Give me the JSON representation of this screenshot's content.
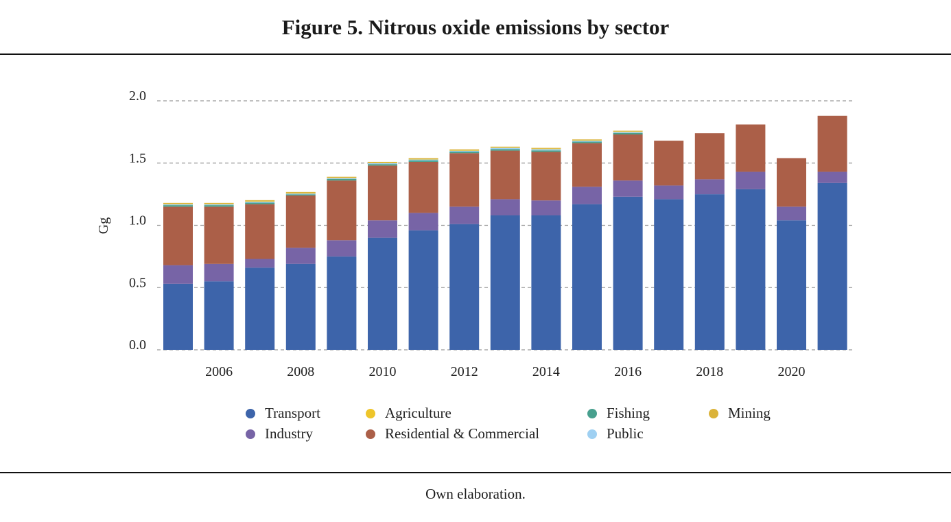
{
  "title": "Figure 5. Nitrous oxide emissions by sector",
  "footer": "Own elaboration.",
  "chart_data": {
    "type": "bar",
    "stacked": true,
    "title": "Figure 5. Nitrous oxide emissions by sector",
    "xlabel": "",
    "ylabel": "Gg",
    "ylim": [
      0,
      2.0
    ],
    "yticks": [
      "0.0",
      "0.5",
      "1.0",
      "1.5",
      "2.0"
    ],
    "ytick_values": [
      0,
      0.5,
      1.0,
      1.5,
      2.0
    ],
    "grid": true,
    "categories": [
      "2005",
      "2006",
      "2007",
      "2008",
      "2009",
      "2010",
      "2011",
      "2012",
      "2013",
      "2014",
      "2015",
      "2016",
      "2017",
      "2018",
      "2019",
      "2020",
      "2021"
    ],
    "xtick_labels": [
      "",
      "2006",
      "",
      "2008",
      "",
      "2010",
      "",
      "2012",
      "",
      "2014",
      "",
      "2016",
      "",
      "2018",
      "",
      "2020",
      ""
    ],
    "legend_position": "bottom",
    "series": [
      {
        "name": "Transport",
        "color": "#3d64aa",
        "values": [
          0.53,
          0.55,
          0.66,
          0.69,
          0.75,
          0.9,
          0.96,
          1.01,
          1.08,
          1.08,
          1.17,
          1.23,
          1.21,
          1.25,
          1.29,
          1.04,
          1.34
        ]
      },
      {
        "name": "Industry",
        "color": "#7764a6",
        "values": [
          0.15,
          0.14,
          0.07,
          0.13,
          0.13,
          0.14,
          0.14,
          0.14,
          0.13,
          0.12,
          0.14,
          0.13,
          0.11,
          0.12,
          0.14,
          0.11,
          0.09
        ]
      },
      {
        "name": "Residential & Commercial",
        "color": "#ab5f48",
        "values": [
          0.47,
          0.46,
          0.44,
          0.42,
          0.48,
          0.44,
          0.41,
          0.43,
          0.39,
          0.39,
          0.35,
          0.37,
          0.36,
          0.37,
          0.38,
          0.39,
          0.45
        ]
      },
      {
        "name": "Fishing",
        "color": "#48a08e",
        "values": [
          0.012,
          0.012,
          0.012,
          0.008,
          0.012,
          0.012,
          0.012,
          0.012,
          0.012,
          0.012,
          0.012,
          0.012,
          0,
          0,
          0,
          0,
          0
        ]
      },
      {
        "name": "Public",
        "color": "#9fd0f2",
        "values": [
          0.008,
          0.008,
          0.008,
          0.008,
          0.008,
          0.008,
          0.008,
          0.008,
          0.01,
          0.01,
          0.008,
          0.008,
          0,
          0,
          0,
          0,
          0
        ]
      },
      {
        "name": "Agriculture",
        "color": "#eec52b",
        "values": [
          0.002,
          0.002,
          0.004,
          0.002,
          0.002,
          0.002,
          0.002,
          0.002,
          0.004,
          0.004,
          0.004,
          0.004,
          0,
          0,
          0,
          0,
          0
        ]
      },
      {
        "name": "Mining",
        "color": "#dbb33a",
        "values": [
          0.008,
          0.008,
          0.008,
          0.01,
          0.008,
          0.008,
          0.008,
          0.008,
          0.006,
          0.006,
          0.006,
          0.006,
          0,
          0,
          0,
          0,
          0
        ]
      }
    ],
    "legend": [
      {
        "name": "Transport",
        "color": "#3d64aa"
      },
      {
        "name": "Agriculture",
        "color": "#eec52b"
      },
      {
        "name": "Fishing",
        "color": "#48a08e"
      },
      {
        "name": "Mining",
        "color": "#dbb33a"
      },
      {
        "name": "Industry",
        "color": "#7764a6"
      },
      {
        "name": "Residential & Commercial",
        "color": "#ab5f48"
      },
      {
        "name": "Public",
        "color": "#9fd0f2"
      }
    ]
  }
}
